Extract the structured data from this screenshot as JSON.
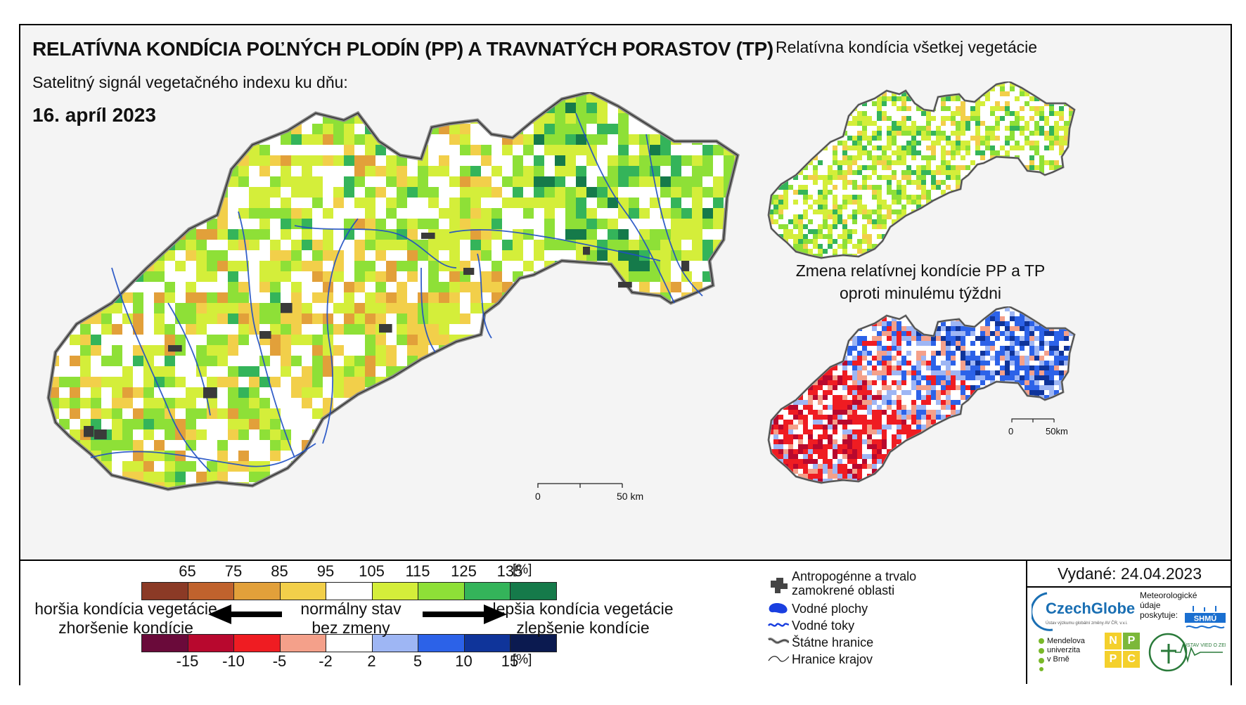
{
  "header": {
    "title": "RELATÍVNA KONDÍCIA POĽNÝCH PLODÍN (PP) A TRAVNATÝCH PORASTOV (TP)",
    "subtitle": "Satelitný signál vegetačného indexu ku dňu:",
    "date": "16. apríl 2023"
  },
  "insets": {
    "all_vegetation_title": "Relatívna kondícia všetkej vegetácie",
    "change_title_line1": "Zmena relatívnej kondície PP a TP",
    "change_title_line2": "oproti minulému týždni"
  },
  "scalebars": {
    "main": {
      "zero": "0",
      "end": "50 km"
    },
    "inset": {
      "zero": "0",
      "end": "50km"
    }
  },
  "legend": {
    "condition_ticks": [
      "65",
      "75",
      "85",
      "95",
      "105",
      "115",
      "125",
      "135",
      "[%]"
    ],
    "condition_colors": [
      "#8b3a26",
      "#c0622d",
      "#e2a03a",
      "#f2cf4a",
      "#ffffff",
      "#d4ee3a",
      "#8ee037",
      "#34b45a",
      "#157a4a"
    ],
    "change_ticks": [
      "-15",
      "-10",
      "-5",
      "-2",
      "2",
      "5",
      "10",
      "15",
      "[%]"
    ],
    "change_colors": [
      "#6a0a3a",
      "#b8082e",
      "#ef1c22",
      "#f4a08a",
      "#ffffff",
      "#9eb6f4",
      "#2c62e8",
      "#0f349a",
      "#0b1a50"
    ],
    "left_label_1": "horšia kondícia vegetácie",
    "left_label_2": "zhoršenie kondície",
    "center_label_1": "normálny stav",
    "center_label_2": "bez zmeny",
    "right_label_1": "lepšia kondícia vegetácie",
    "right_label_2": "zlepšenie kondície"
  },
  "symbols": {
    "urban_1": "Antropogénne a trvalo",
    "urban_2": "zamokrené oblasti",
    "water_bodies": "Vodné plochy",
    "rivers": "Vodné toky",
    "state_border": "Štátne hranice",
    "region_border": "Hranice krajov"
  },
  "issued": "Vydané: 24.04.2023",
  "logos": {
    "czechglobe": "CzechGlobe",
    "czechglobe_sub": "Ústav výzkumu globální změny AV ČR, v.v.i.",
    "meteo_1": "Meteorologické",
    "meteo_2": "údaje",
    "meteo_3": "poskytuje:",
    "shmu": "SHMÚ",
    "mendelu_1": "Mendelova",
    "mendelu_2": "univerzita",
    "mendelu_3": "v Brně",
    "nppc": [
      "N",
      "P",
      "P",
      "C"
    ],
    "usvz": "ÚSTAV VIED O ZEMI"
  }
}
